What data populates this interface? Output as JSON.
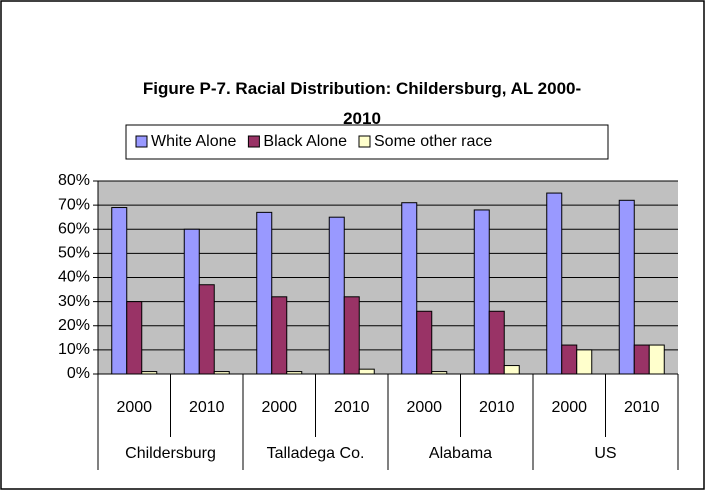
{
  "chart_data": {
    "type": "bar",
    "title": "Figure P-7. Racial Distribution: Childersburg, AL 2000-2010",
    "categories": [
      "2000",
      "2010",
      "2000",
      "2010",
      "2000",
      "2010",
      "2000",
      "2010"
    ],
    "category_groups": [
      "Childersburg",
      "Talladega Co.",
      "Alabama",
      "US"
    ],
    "series": [
      {
        "name": "White Alone",
        "color": "#9999ff",
        "values": [
          69,
          60,
          67,
          65,
          71,
          68,
          75,
          72
        ]
      },
      {
        "name": "Black Alone",
        "color": "#993366",
        "values": [
          30,
          37,
          32,
          32,
          26,
          26,
          12,
          12
        ]
      },
      {
        "name": "Some other race",
        "color": "#ffffcc",
        "values": [
          1,
          1,
          1,
          2,
          1,
          3.5,
          10,
          12
        ]
      }
    ],
    "ylim": [
      0,
      80
    ],
    "yticks": [
      {
        "value": 0,
        "label": "0%"
      },
      {
        "value": 10,
        "label": "10%"
      },
      {
        "value": 20,
        "label": "20%"
      },
      {
        "value": 30,
        "label": "30%"
      },
      {
        "value": 40,
        "label": "40%"
      },
      {
        "value": 50,
        "label": "50%"
      },
      {
        "value": 60,
        "label": "60%"
      },
      {
        "value": 70,
        "label": "70%"
      },
      {
        "value": 80,
        "label": "80%"
      }
    ],
    "grid": true,
    "legend": "top"
  }
}
